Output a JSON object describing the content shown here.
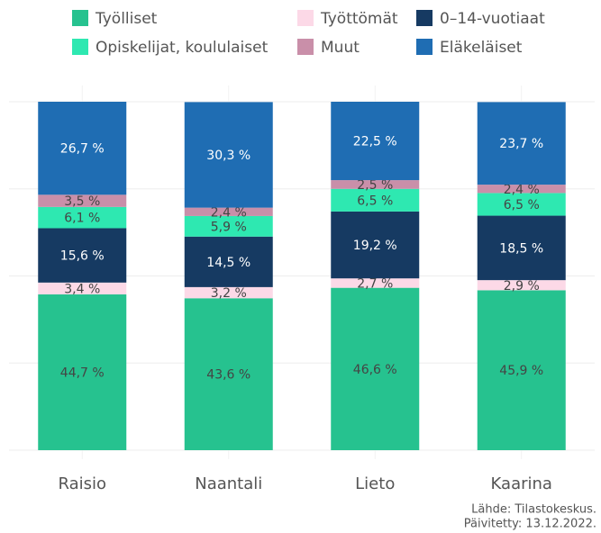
{
  "chart_data": {
    "type": "stacked_bar",
    "categories": [
      "Raisio",
      "Naantali",
      "Lieto",
      "Kaarina"
    ],
    "series": [
      {
        "name": "Työlliset",
        "color": "#26c28f",
        "values": [
          44.7,
          43.6,
          46.6,
          45.9
        ],
        "value_labels": [
          "44,7 %",
          "43,6 %",
          "46,6 %",
          "45,9 %"
        ]
      },
      {
        "name": "Työttömät",
        "color": "#fcd9e7",
        "values": [
          3.4,
          3.2,
          2.7,
          2.9
        ],
        "value_labels": [
          "3,4 %",
          "3,2 %",
          "2,7 %",
          "2,9 %"
        ]
      },
      {
        "name": "0–14-vuotiaat",
        "color": "#163a62",
        "values": [
          15.6,
          14.5,
          19.2,
          18.5
        ],
        "value_labels": [
          "15,6 %",
          "14,5 %",
          "19,2 %",
          "18,5 %"
        ]
      },
      {
        "name": "Opiskelijat, koululaiset",
        "color": "#2ee8b1",
        "values": [
          6.1,
          5.9,
          6.5,
          6.5
        ],
        "value_labels": [
          "6,1 %",
          "5,9 %",
          "6,5 %",
          "6,5 %"
        ]
      },
      {
        "name": "Muut",
        "color": "#c98fa9",
        "values": [
          3.5,
          2.4,
          2.5,
          2.4
        ],
        "value_labels": [
          "3,5 %",
          "2,4 %",
          "2,5 %",
          "2,4 %"
        ]
      },
      {
        "name": "Eläkeläiset",
        "color": "#1f6db3",
        "values": [
          26.7,
          30.3,
          22.5,
          23.7
        ],
        "value_labels": [
          "26,7 %",
          "30,3 %",
          "22,5 %",
          "23,7 %"
        ]
      }
    ],
    "ylim": [
      0,
      100
    ],
    "yticks": [
      0,
      25,
      50,
      75,
      100
    ],
    "grid": true,
    "legend": "top",
    "source": "Lähde: Tilastokeskus.",
    "updated": "Päivitetty: 13.12.2022."
  }
}
